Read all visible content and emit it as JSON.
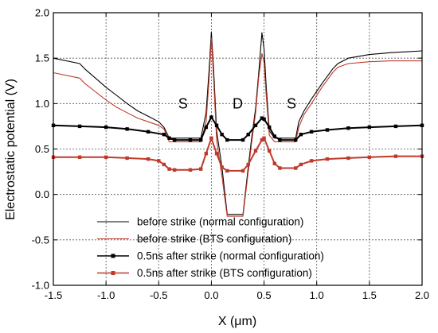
{
  "chart_data": {
    "type": "line",
    "xlabel": "X (μm)",
    "ylabel": "Electrostatic potential (V)",
    "xlim": [
      -1.5,
      2.0
    ],
    "ylim": [
      -1.0,
      2.0
    ],
    "xticks": [
      -1.5,
      -1.0,
      -0.5,
      0.0,
      0.5,
      1.0,
      1.5,
      2.0
    ],
    "yticks": [
      -1.0,
      -0.5,
      0.0,
      0.5,
      1.0,
      1.5,
      2.0
    ],
    "xtick_labels": [
      "-1.5",
      "-1.0",
      "-0.5",
      "0.0",
      "0.5",
      "1.0",
      "1.5",
      "2.0"
    ],
    "ytick_labels": [
      "-1.0",
      "-0.5",
      "0.0",
      "0.5",
      "1.0",
      "1.5",
      "2.0"
    ],
    "grid": true,
    "legend_position": "bottom-center",
    "annotations": [
      {
        "text": "S",
        "x": -0.27,
        "y": 1.0
      },
      {
        "text": "D",
        "x": 0.25,
        "y": 1.0
      },
      {
        "text": "S",
        "x": 0.76,
        "y": 1.0
      }
    ],
    "series": [
      {
        "name": "before strike (normal configuration)",
        "color": "#000000",
        "marker": false,
        "x": [
          -1.5,
          -1.25,
          -1.2,
          -1.1,
          -1.0,
          -0.9,
          -0.8,
          -0.7,
          -0.6,
          -0.5,
          -0.45,
          -0.4,
          -0.35,
          -0.2,
          -0.1,
          -0.05,
          -0.02,
          0.0,
          0.02,
          0.05,
          0.1,
          0.15,
          0.3,
          0.35,
          0.38,
          0.42,
          0.45,
          0.48,
          0.5,
          0.52,
          0.55,
          0.6,
          0.65,
          0.8,
          0.83,
          0.88,
          0.95,
          1.05,
          1.15,
          1.2,
          1.3,
          1.5,
          1.7,
          2.0
        ],
        "y": [
          1.5,
          1.44,
          1.38,
          1.28,
          1.18,
          1.09,
          1.0,
          0.92,
          0.86,
          0.8,
          0.74,
          0.62,
          0.62,
          0.62,
          0.62,
          0.9,
          1.4,
          1.79,
          1.4,
          0.7,
          0.3,
          -0.22,
          -0.22,
          0.3,
          0.6,
          0.95,
          1.35,
          1.78,
          1.6,
          1.2,
          0.7,
          0.62,
          0.62,
          0.62,
          0.8,
          0.92,
          1.05,
          1.22,
          1.38,
          1.44,
          1.5,
          1.54,
          1.56,
          1.58
        ]
      },
      {
        "name": "before strike (BTS configuration)",
        "color": "#c0392b",
        "marker": false,
        "x": [
          -1.5,
          -1.25,
          -1.2,
          -1.1,
          -1.0,
          -0.9,
          -0.8,
          -0.7,
          -0.6,
          -0.5,
          -0.45,
          -0.4,
          -0.35,
          -0.2,
          -0.1,
          -0.05,
          -0.02,
          0.0,
          0.02,
          0.05,
          0.1,
          0.15,
          0.3,
          0.35,
          0.38,
          0.42,
          0.45,
          0.48,
          0.5,
          0.52,
          0.55,
          0.6,
          0.65,
          0.8,
          0.83,
          0.88,
          0.95,
          1.05,
          1.15,
          1.2,
          1.3,
          1.5,
          1.7,
          2.0
        ],
        "y": [
          1.34,
          1.28,
          1.22,
          1.13,
          1.04,
          0.96,
          0.9,
          0.84,
          0.8,
          0.76,
          0.72,
          0.58,
          0.58,
          0.58,
          0.58,
          0.8,
          1.3,
          1.72,
          1.3,
          0.6,
          0.2,
          -0.24,
          -0.24,
          0.25,
          0.55,
          0.9,
          1.3,
          1.55,
          1.45,
          1.1,
          0.65,
          0.58,
          0.58,
          0.58,
          0.74,
          0.88,
          1.0,
          1.18,
          1.34,
          1.4,
          1.44,
          1.46,
          1.47,
          1.47
        ]
      },
      {
        "name": "0.5ns after strike (normal configuration)",
        "color": "#000000",
        "marker": true,
        "x": [
          -1.5,
          -1.25,
          -1.0,
          -0.8,
          -0.6,
          -0.45,
          -0.4,
          -0.35,
          -0.2,
          -0.1,
          -0.05,
          0.0,
          0.05,
          0.1,
          0.15,
          0.3,
          0.35,
          0.42,
          0.48,
          0.5,
          0.55,
          0.6,
          0.65,
          0.8,
          0.85,
          0.95,
          1.1,
          1.3,
          1.5,
          1.75,
          2.0
        ],
        "y": [
          0.76,
          0.75,
          0.74,
          0.72,
          0.69,
          0.66,
          0.62,
          0.6,
          0.6,
          0.6,
          0.74,
          0.85,
          0.76,
          0.66,
          0.6,
          0.6,
          0.66,
          0.76,
          0.84,
          0.83,
          0.74,
          0.64,
          0.6,
          0.6,
          0.66,
          0.69,
          0.71,
          0.73,
          0.74,
          0.75,
          0.76
        ]
      },
      {
        "name": "0.5ns after strike (BTS configuration)",
        "color": "#c0392b",
        "marker": true,
        "x": [
          -1.5,
          -1.25,
          -1.0,
          -0.8,
          -0.6,
          -0.5,
          -0.45,
          -0.4,
          -0.35,
          -0.2,
          -0.1,
          -0.05,
          0.0,
          0.05,
          0.1,
          0.15,
          0.3,
          0.35,
          0.42,
          0.48,
          0.5,
          0.55,
          0.6,
          0.65,
          0.8,
          0.85,
          0.95,
          1.1,
          1.3,
          1.5,
          1.75,
          2.0
        ],
        "y": [
          0.41,
          0.41,
          0.41,
          0.4,
          0.39,
          0.37,
          0.33,
          0.28,
          0.27,
          0.27,
          0.28,
          0.45,
          0.62,
          0.45,
          0.3,
          0.26,
          0.26,
          0.33,
          0.48,
          0.6,
          0.62,
          0.48,
          0.34,
          0.29,
          0.29,
          0.33,
          0.37,
          0.39,
          0.4,
          0.41,
          0.42,
          0.42
        ]
      }
    ]
  }
}
